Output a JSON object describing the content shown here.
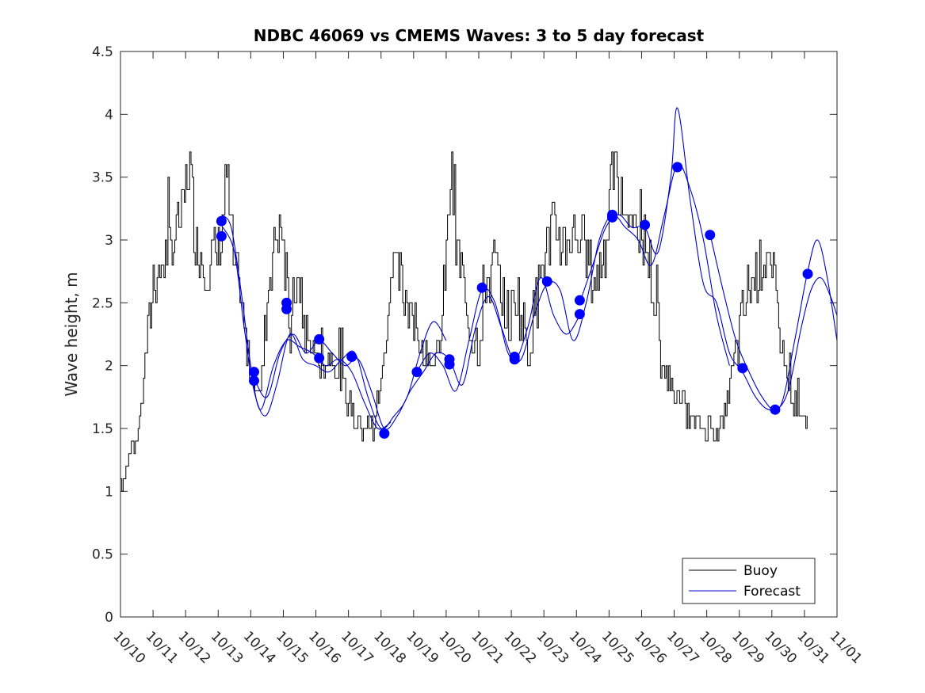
{
  "chart_data": {
    "type": "line",
    "title": "NDBC 46069 vs CMEMS Waves: 3 to 5 day forecast",
    "xlabel": "",
    "ylabel": "Wave height, m",
    "xlim": [
      0,
      22
    ],
    "ylim": [
      0,
      4.5
    ],
    "yticks": [
      0,
      0.5,
      1,
      1.5,
      2,
      2.5,
      3,
      3.5,
      4,
      4.5
    ],
    "ytick_labels": [
      "0",
      "0.5",
      "1",
      "1.5",
      "2",
      "2.5",
      "3",
      "3.5",
      "4",
      "4.5"
    ],
    "xtick_labels": [
      "10/10",
      "10/11",
      "10/12",
      "10/13",
      "10/14",
      "10/15",
      "10/16",
      "10/17",
      "10/18",
      "10/19",
      "10/20",
      "10/21",
      "10/22",
      "10/23",
      "10/24",
      "10/25",
      "10/26",
      "10/27",
      "10/28",
      "10/29",
      "10/30",
      "10/31",
      "11/01"
    ],
    "grid": false,
    "legend": {
      "location": "bottom-right",
      "entries": [
        {
          "label": "Buoy",
          "color": "#000000"
        },
        {
          "label": "Forecast",
          "color": "#0000cc"
        }
      ]
    },
    "buoy": {
      "name": "Buoy",
      "color": "#000000",
      "x": [
        0,
        0.3,
        0.6,
        0.9,
        1.0,
        1.3,
        1.6,
        1.9,
        2.1,
        2.3,
        2.6,
        2.9,
        3.1,
        3.25,
        3.35,
        3.5,
        3.75,
        3.9,
        4.05,
        4.3,
        4.55,
        4.75,
        4.95,
        5.2,
        5.4,
        5.55,
        5.75,
        5.95,
        6.2,
        6.45,
        6.7,
        6.9,
        7.15,
        7.45,
        7.75,
        7.95,
        8.1,
        8.25,
        8.4,
        8.65,
        8.9,
        9.1,
        9.35,
        9.6,
        9.85,
        10.05,
        10.15,
        10.3,
        10.5,
        10.7,
        11.0,
        11.15,
        11.25,
        11.5,
        11.75,
        11.95,
        12.15,
        12.35,
        12.55,
        12.8,
        13.0,
        13.25,
        13.5,
        13.75,
        13.95,
        14.15,
        14.35,
        14.6,
        14.9,
        15.15,
        15.3,
        15.55,
        15.8,
        16.1,
        16.25,
        16.45,
        16.65,
        16.85,
        17.05,
        17.35,
        17.6,
        17.85,
        18.2,
        18.5,
        18.8,
        19.05,
        19.3,
        19.55,
        19.8,
        20.1,
        20.4,
        20.65,
        20.9,
        21.1
      ],
      "values": [
        1.1,
        1.3,
        1.6,
        2.4,
        2.7,
        2.8,
        3.0,
        3.2,
        3.65,
        3.0,
        2.8,
        2.85,
        3.05,
        3.5,
        3.2,
        2.75,
        2.4,
        2.0,
        1.9,
        1.8,
        2.7,
        3.0,
        3.1,
        2.2,
        2.7,
        2.4,
        2.2,
        2.1,
        2.0,
        2.1,
        1.9,
        1.75,
        1.6,
        1.5,
        1.5,
        1.8,
        2.1,
        2.6,
        2.8,
        2.6,
        2.5,
        2.2,
        2.1,
        2.0,
        2.25,
        3.1,
        3.6,
        2.9,
        2.7,
        2.3,
        2.2,
        2.6,
        2.7,
        2.8,
        2.5,
        2.35,
        2.6,
        2.3,
        2.2,
        2.6,
        2.9,
        3.1,
        3.0,
        3.0,
        3.1,
        3.0,
        2.8,
        2.65,
        3.0,
        3.6,
        3.3,
        3.2,
        3.1,
        3.0,
        2.8,
        2.35,
        2.0,
        1.9,
        1.8,
        1.65,
        1.55,
        1.5,
        1.5,
        1.55,
        2.0,
        2.35,
        2.65,
        2.75,
        2.9,
        2.55,
        2.0,
        1.7,
        1.55,
        1.55
      ]
    },
    "forecast_series": [
      {
        "name": "Forecast",
        "color": "#0000cc",
        "x": [
          3.1,
          3.4,
          3.7,
          4.0,
          4.3,
          4.7,
          5.1,
          5.5,
          5.9,
          6.3,
          6.7,
          7.1,
          7.5,
          7.9,
          8.3
        ],
        "values": [
          3.2,
          3.1,
          2.6,
          2.0,
          1.65,
          2.0,
          2.2,
          2.15,
          2.1,
          2.0,
          2.05,
          1.95,
          1.7,
          1.5,
          1.55
        ]
      },
      {
        "name": "Forecast",
        "color": "#0000cc",
        "x": [
          3.15,
          3.5,
          3.8,
          4.1,
          4.45,
          4.8,
          5.2,
          5.6,
          6.0,
          6.4,
          6.8,
          7.2,
          7.6,
          8.0,
          8.4,
          8.8,
          9.2,
          9.6,
          10.0
        ],
        "values": [
          3.1,
          2.9,
          2.3,
          1.8,
          1.6,
          1.85,
          2.25,
          2.05,
          2.0,
          1.95,
          2.05,
          2.1,
          1.75,
          1.5,
          1.6,
          1.75,
          2.1,
          2.35,
          2.2
        ]
      },
      {
        "name": "Forecast",
        "color": "#0000cc",
        "x": [
          4.1,
          4.5,
          4.9,
          5.3,
          5.7,
          6.1,
          6.5,
          6.9,
          7.3,
          7.7,
          8.1,
          8.5,
          8.9,
          9.3,
          9.7,
          10.1,
          10.5,
          10.9,
          11.3,
          11.7,
          12.1,
          12.5,
          12.9,
          13.3,
          13.7,
          14.1
        ],
        "values": [
          1.9,
          1.75,
          2.1,
          2.25,
          2.1,
          2.2,
          2.1,
          2.0,
          2.05,
          1.8,
          1.5,
          1.6,
          1.8,
          1.95,
          2.1,
          2.05,
          1.85,
          2.3,
          2.55,
          2.3,
          2.05,
          2.3,
          2.7,
          2.4,
          2.25,
          2.4
        ]
      },
      {
        "name": "Forecast",
        "color": "#0000cc",
        "x": [
          9.1,
          9.5,
          9.9,
          10.3,
          10.7,
          11.1,
          11.5,
          11.9,
          12.3,
          12.7,
          13.1,
          13.5,
          13.9,
          14.3,
          14.7,
          15.1,
          15.5,
          15.9,
          16.3,
          16.7,
          17.1,
          17.5,
          17.9,
          18.3,
          18.7
        ],
        "values": [
          1.95,
          2.1,
          2.0,
          1.8,
          2.2,
          2.6,
          2.5,
          2.1,
          2.05,
          2.4,
          2.65,
          2.6,
          2.2,
          2.5,
          3.0,
          3.2,
          3.1,
          3.0,
          2.8,
          3.2,
          3.6,
          3.4,
          3.0,
          2.4,
          2.0
        ]
      },
      {
        "name": "Forecast",
        "color": "#0000cc",
        "x": [
          14.1,
          14.5,
          14.9,
          15.3,
          15.7,
          16.1,
          16.5,
          16.9,
          17.1,
          17.5,
          17.9,
          18.3,
          18.7,
          19.1,
          19.5,
          19.9,
          20.3,
          20.7,
          21.1,
          21.4,
          21.7,
          22.0
        ],
        "values": [
          2.5,
          2.8,
          3.1,
          3.2,
          3.1,
          3.1,
          2.9,
          3.5,
          4.05,
          3.3,
          2.65,
          2.5,
          2.1,
          1.95,
          1.75,
          1.65,
          1.7,
          2.2,
          2.75,
          3.0,
          2.7,
          2.2
        ]
      },
      {
        "name": "Forecast",
        "color": "#0000cc",
        "x": [
          18.1,
          18.5,
          18.9,
          19.3,
          19.7,
          20.1,
          20.5,
          20.9,
          21.2,
          21.5,
          21.8,
          22.0
        ],
        "values": [
          3.05,
          2.6,
          2.2,
          1.95,
          1.75,
          1.65,
          1.8,
          2.3,
          2.6,
          2.7,
          2.55,
          2.4
        ]
      }
    ],
    "markers": {
      "name": "Forecast points",
      "color": "#0000ff",
      "x": [
        3.1,
        3.1,
        4.1,
        4.1,
        5.1,
        5.1,
        6.1,
        6.1,
        7.1,
        8.1,
        9.1,
        10.1,
        10.1,
        11.1,
        12.1,
        12.1,
        13.1,
        14.1,
        14.1,
        15.1,
        15.1,
        16.1,
        17.1,
        18.1,
        19.1,
        20.1,
        21.1
      ],
      "values": [
        3.15,
        3.03,
        1.95,
        1.88,
        2.5,
        2.45,
        2.21,
        2.06,
        2.07,
        1.46,
        1.95,
        2.05,
        2.01,
        2.62,
        2.07,
        2.05,
        2.67,
        2.52,
        2.41,
        3.2,
        3.18,
        3.12,
        3.58,
        3.04,
        1.98,
        1.65,
        2.73
      ]
    }
  }
}
